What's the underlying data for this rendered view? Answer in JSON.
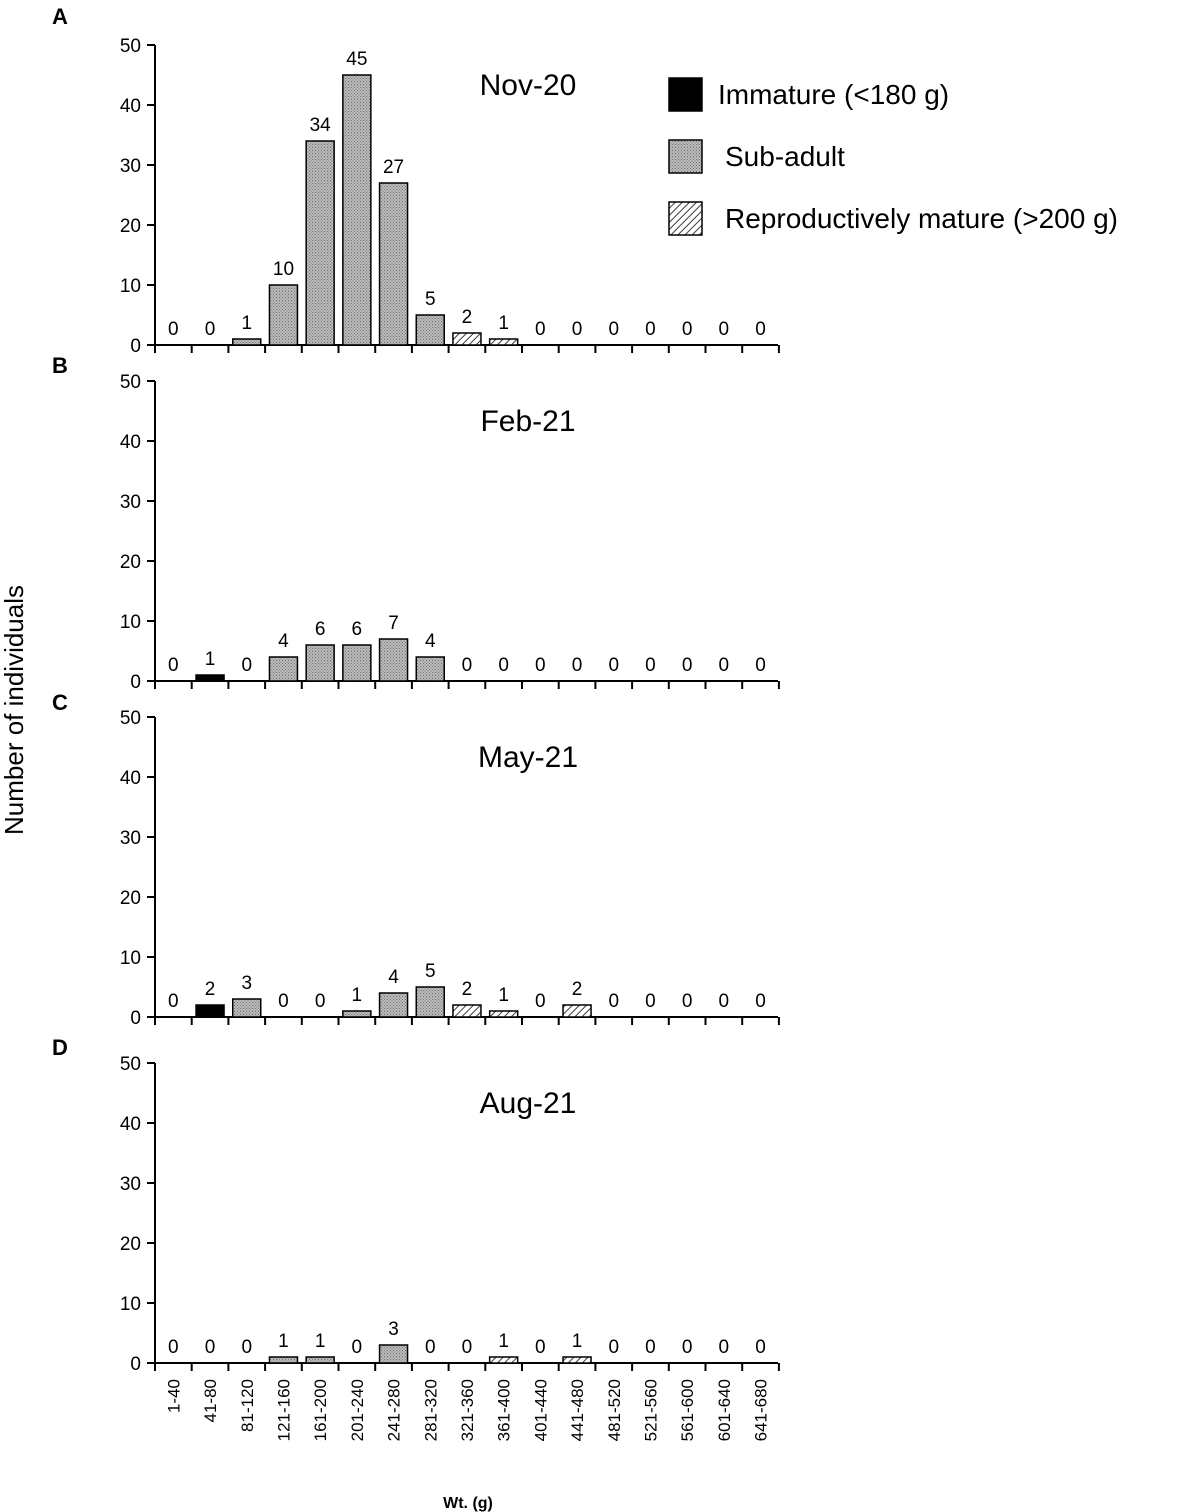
{
  "figure": {
    "ylabel": "Number of individuals",
    "xlabel": "Wt. (g)"
  },
  "legend": [
    {
      "key": "immature",
      "label": "Immature (<180 g)"
    },
    {
      "key": "subadult",
      "label": "Sub-adult"
    },
    {
      "key": "mature",
      "label": "Reproductively mature (>200 g)"
    }
  ],
  "colors": {
    "immature": "#000000",
    "subadult": "#a9a9a9",
    "mature_hatch": "#555555",
    "axis": "#000000"
  },
  "chart_data": [
    {
      "panel": "A",
      "type": "bar",
      "title": "Nov-20",
      "categories": [
        "1-40",
        "41-80",
        "81-120",
        "121-160",
        "161-200",
        "201-240",
        "241-280",
        "281-320",
        "321-360",
        "361-400",
        "401-440",
        "441-480",
        "481-520",
        "521-560",
        "561-600",
        "601-640",
        "641-680"
      ],
      "values": [
        0,
        0,
        1,
        10,
        34,
        45,
        27,
        5,
        2,
        1,
        0,
        0,
        0,
        0,
        0,
        0,
        0
      ],
      "classes": [
        "subadult",
        "subadult",
        "subadult",
        "subadult",
        "subadult",
        "subadult",
        "subadult",
        "subadult",
        "mature",
        "mature",
        "subadult",
        "subadult",
        "subadult",
        "subadult",
        "subadult",
        "subadult",
        "subadult"
      ],
      "ylim": [
        0,
        50
      ],
      "yticks": [
        0,
        10,
        20,
        30,
        40,
        50
      ],
      "xlabel": "Wt. (g)",
      "ylabel": "Number of individuals"
    },
    {
      "panel": "B",
      "type": "bar",
      "title": "Feb-21",
      "categories": [
        "1-40",
        "41-80",
        "81-120",
        "121-160",
        "161-200",
        "201-240",
        "241-280",
        "281-320",
        "321-360",
        "361-400",
        "401-440",
        "441-480",
        "481-520",
        "521-560",
        "561-600",
        "601-640",
        "641-680"
      ],
      "values": [
        0,
        1,
        0,
        4,
        6,
        6,
        7,
        4,
        0,
        0,
        0,
        0,
        0,
        0,
        0,
        0,
        0
      ],
      "classes": [
        "subadult",
        "immature",
        "subadult",
        "subadult",
        "subadult",
        "subadult",
        "subadult",
        "subadult",
        "subadult",
        "subadult",
        "subadult",
        "subadult",
        "subadult",
        "subadult",
        "subadult",
        "subadult",
        "subadult"
      ],
      "ylim": [
        0,
        50
      ],
      "yticks": [
        0,
        10,
        20,
        30,
        40,
        50
      ],
      "xlabel": "Wt. (g)",
      "ylabel": "Number of individuals"
    },
    {
      "panel": "C",
      "type": "bar",
      "title": "May-21",
      "categories": [
        "1-40",
        "41-80",
        "81-120",
        "121-160",
        "161-200",
        "201-240",
        "241-280",
        "281-320",
        "321-360",
        "361-400",
        "401-440",
        "441-480",
        "481-520",
        "521-560",
        "561-600",
        "601-640",
        "641-680"
      ],
      "values": [
        0,
        2,
        3,
        0,
        0,
        1,
        4,
        5,
        2,
        1,
        0,
        2,
        0,
        0,
        0,
        0,
        0
      ],
      "classes": [
        "subadult",
        "immature",
        "subadult",
        "subadult",
        "subadult",
        "subadult",
        "subadult",
        "subadult",
        "mature",
        "mature",
        "subadult",
        "mature",
        "subadult",
        "subadult",
        "subadult",
        "subadult",
        "subadult"
      ],
      "ylim": [
        0,
        50
      ],
      "yticks": [
        0,
        10,
        20,
        30,
        40,
        50
      ],
      "xlabel": "Wt. (g)",
      "ylabel": "Number of individuals"
    },
    {
      "panel": "D",
      "type": "bar",
      "title": "Aug-21",
      "categories": [
        "1-40",
        "41-80",
        "81-120",
        "121-160",
        "161-200",
        "201-240",
        "241-280",
        "281-320",
        "321-360",
        "361-400",
        "401-440",
        "441-480",
        "481-520",
        "521-560",
        "561-600",
        "601-640",
        "641-680"
      ],
      "values": [
        0,
        0,
        0,
        1,
        1,
        0,
        3,
        0,
        0,
        1,
        0,
        1,
        0,
        0,
        0,
        0,
        0
      ],
      "classes": [
        "subadult",
        "subadult",
        "subadult",
        "subadult",
        "subadult",
        "subadult",
        "subadult",
        "subadult",
        "subadult",
        "mature",
        "subadult",
        "mature",
        "subadult",
        "subadult",
        "subadult",
        "subadult",
        "subadult"
      ],
      "ylim": [
        0,
        50
      ],
      "yticks": [
        0,
        10,
        20,
        30,
        40,
        50
      ],
      "xlabel": "Wt. (g)",
      "ylabel": "Number of individuals"
    }
  ]
}
